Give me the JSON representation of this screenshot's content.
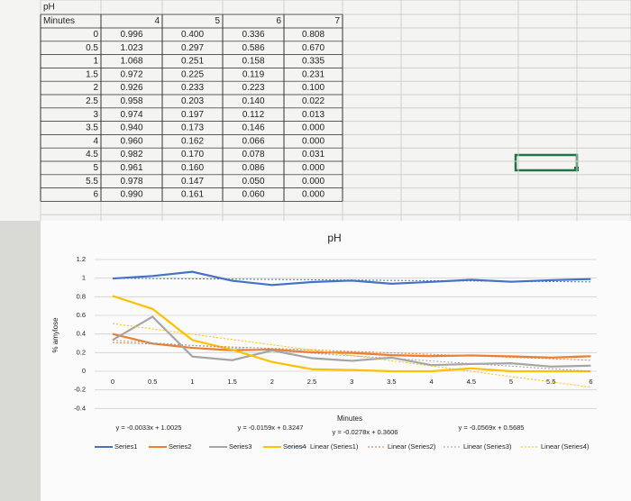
{
  "table": {
    "corner": "pH",
    "header": [
      "Minutes",
      4,
      5,
      6,
      7
    ],
    "rows": [
      [
        0,
        "0.996",
        "0.400",
        "0.336",
        "0.808"
      ],
      [
        0.5,
        "1.023",
        "0.297",
        "0.586",
        "0.670"
      ],
      [
        1,
        "1.068",
        "0.251",
        "0.158",
        "0.335"
      ],
      [
        1.5,
        "0.972",
        "0.225",
        "0.119",
        "0.231"
      ],
      [
        2,
        "0.926",
        "0.233",
        "0.223",
        "0.100"
      ],
      [
        2.5,
        "0.958",
        "0.203",
        "0.140",
        "0.022"
      ],
      [
        3,
        "0.974",
        "0.197",
        "0.112",
        "0.013"
      ],
      [
        3.5,
        "0.940",
        "0.173",
        "0.146",
        "0.000"
      ],
      [
        4,
        "0.960",
        "0.162",
        "0.066",
        "0.000"
      ],
      [
        4.5,
        "0.982",
        "0.170",
        "0.078",
        "0.031"
      ],
      [
        5,
        "0.961",
        "0.160",
        "0.086",
        "0.000"
      ],
      [
        5.5,
        "0.978",
        "0.147",
        "0.050",
        "0.000"
      ],
      [
        6,
        "0.990",
        "0.161",
        "0.060",
        "0.000"
      ]
    ]
  },
  "chart_data": {
    "type": "line",
    "title": "pH",
    "y_label": "% amylose",
    "x_label": "Minutes",
    "ylim": [
      -0.4,
      1.2
    ],
    "yticks": [
      1.2,
      1,
      0.8,
      0.6,
      0.4,
      0.2,
      0,
      -0.2,
      -0.4
    ],
    "grid": true,
    "series": [
      {
        "name": "Series1",
        "color": "#4472c4"
      },
      {
        "name": "Series2",
        "color": "#ed7d31"
      },
      {
        "name": "Series3",
        "color": "#a5a5a5"
      },
      {
        "name": "Series4",
        "color": "#ffc000"
      }
    ],
    "trendlines": [
      {
        "name": "Linear (Series1)",
        "equation": "y = -0.0033x + 1.0025",
        "slope": -0.0033,
        "intercept": 1.0025
      },
      {
        "name": "Linear (Series2)",
        "equation": "y = -0.0159x + 0.3247",
        "slope": -0.0159,
        "intercept": 0.3247
      },
      {
        "name": "Linear (Series3)",
        "equation": "y = -0.0278x + 0.3606",
        "slope": -0.0278,
        "intercept": 0.3606
      },
      {
        "name": "Linear (Series4)",
        "equation": "y = -0.0569x + 0.5685",
        "slope": -0.0569,
        "intercept": 0.5685
      }
    ]
  }
}
